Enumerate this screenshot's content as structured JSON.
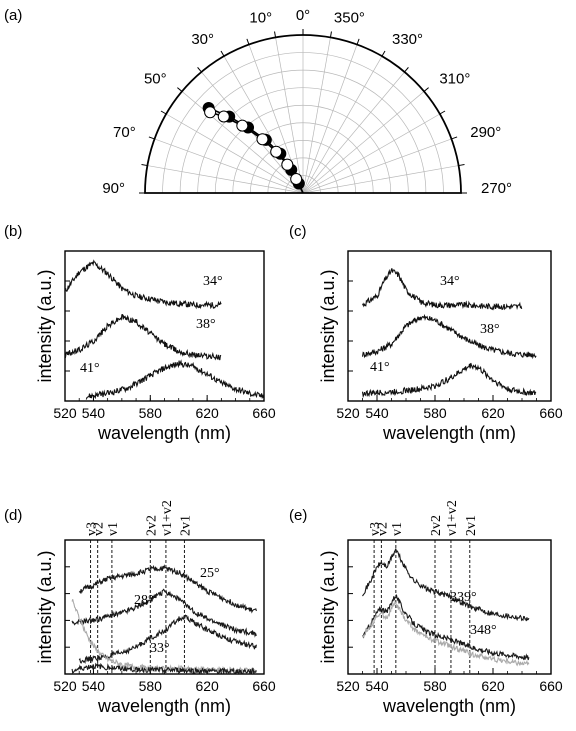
{
  "chart_data": [
    {
      "id": "a",
      "panel_label": "(a)",
      "type": "scatter",
      "coordinate_system": "polar-semicircle",
      "angle_labels": [
        "0°",
        "10°",
        "30°",
        "50°",
        "70°",
        "90°",
        "350°",
        "330°",
        "310°",
        "290°",
        "270°"
      ],
      "series": [
        {
          "marker": "filled-circle",
          "angle_deg": [
            48,
            44,
            40,
            35,
            30,
            27,
            24
          ],
          "radius": [
            0.98,
            0.82,
            0.66,
            0.5,
            0.35,
            0.2,
            0.08
          ]
        },
        {
          "marker": "open-circle",
          "angle_deg": [
            49,
            46,
            42,
            37,
            33,
            29,
            26
          ],
          "radius": [
            0.95,
            0.85,
            0.7,
            0.52,
            0.38,
            0.25,
            0.12
          ]
        }
      ]
    },
    {
      "id": "b",
      "panel_label": "(b)",
      "type": "line",
      "xlabel": "wavelength (nm)",
      "ylabel": "intensity (a.u.)",
      "xlim": [
        520,
        660
      ],
      "xticks": [
        520,
        540,
        580,
        620,
        660
      ],
      "yticks": 4,
      "series": [
        {
          "annotation": "34°",
          "x": [
            520,
            530,
            540,
            550,
            560,
            570,
            580,
            590,
            600,
            610,
            620,
            630
          ],
          "y": [
            0.73,
            0.86,
            0.92,
            0.85,
            0.75,
            0.7,
            0.68,
            0.66,
            0.65,
            0.64,
            0.64,
            0.64
          ]
        },
        {
          "annotation": "38°",
          "x": [
            520,
            530,
            540,
            550,
            560,
            570,
            580,
            590,
            600,
            610,
            620,
            630
          ],
          "y": [
            0.31,
            0.34,
            0.4,
            0.5,
            0.56,
            0.53,
            0.45,
            0.38,
            0.33,
            0.31,
            0.3,
            0.29
          ]
        },
        {
          "annotation": "41°",
          "x": [
            535,
            550,
            565,
            580,
            590,
            600,
            610,
            620,
            630,
            640,
            650,
            660
          ],
          "y": [
            0.03,
            0.05,
            0.09,
            0.17,
            0.22,
            0.25,
            0.23,
            0.18,
            0.12,
            0.08,
            0.05,
            0.03
          ]
        }
      ]
    },
    {
      "id": "c",
      "panel_label": "(c)",
      "type": "line",
      "xlabel": "wavelength (nm)",
      "ylabel": "intensity (a.u.)",
      "xlim": [
        520,
        660
      ],
      "xticks": [
        520,
        540,
        580,
        620,
        660
      ],
      "yticks": 4,
      "series": [
        {
          "annotation": "34°",
          "x": [
            530,
            540,
            545,
            550,
            555,
            560,
            570,
            580,
            600,
            620,
            640
          ],
          "y": [
            0.64,
            0.7,
            0.8,
            0.87,
            0.84,
            0.74,
            0.66,
            0.64,
            0.64,
            0.63,
            0.63
          ]
        },
        {
          "annotation": "38°",
          "x": [
            530,
            540,
            550,
            560,
            570,
            580,
            590,
            600,
            610,
            620,
            630,
            640,
            650
          ],
          "y": [
            0.31,
            0.33,
            0.38,
            0.5,
            0.56,
            0.54,
            0.48,
            0.42,
            0.37,
            0.34,
            0.32,
            0.31,
            0.31
          ]
        },
        {
          "annotation": "41°",
          "x": [
            530,
            550,
            570,
            580,
            590,
            600,
            605,
            610,
            620,
            630,
            640,
            650
          ],
          "y": [
            0.05,
            0.06,
            0.08,
            0.1,
            0.15,
            0.21,
            0.24,
            0.22,
            0.14,
            0.08,
            0.06,
            0.05
          ]
        }
      ]
    },
    {
      "id": "d",
      "panel_label": "(d)",
      "type": "line",
      "xlabel": "wavelength (nm)",
      "ylabel": "intensity (a.u.)",
      "xlim": [
        520,
        660
      ],
      "xticks": [
        520,
        540,
        580,
        620,
        660
      ],
      "yticks": 4,
      "vlines": [
        {
          "label": "v3",
          "x": 538
        },
        {
          "label": "v2",
          "x": 543
        },
        {
          "label": "v1",
          "x": 553
        },
        {
          "label": "2v2",
          "x": 580
        },
        {
          "label": "v1+v2",
          "x": 591
        },
        {
          "label": "2v1",
          "x": 604
        }
      ],
      "series": [
        {
          "annotation": "25°",
          "color": "#1a1a1a",
          "x": [
            530,
            540,
            550,
            560,
            570,
            580,
            590,
            600,
            610,
            620,
            640,
            650,
            655
          ],
          "y": [
            0.62,
            0.66,
            0.71,
            0.73,
            0.75,
            0.78,
            0.79,
            0.76,
            0.69,
            0.62,
            0.52,
            0.48,
            0.47
          ]
        },
        {
          "annotation": "28°",
          "color": "#1a1a1a",
          "x": [
            525,
            540,
            550,
            560,
            570,
            580,
            590,
            600,
            610,
            620,
            640,
            655
          ],
          "y": [
            0.38,
            0.4,
            0.43,
            0.46,
            0.5,
            0.55,
            0.62,
            0.56,
            0.47,
            0.41,
            0.33,
            0.3
          ]
        },
        {
          "annotation": "33°",
          "color": "#1a1a1a",
          "x": [
            530,
            550,
            560,
            570,
            580,
            590,
            600,
            605,
            610,
            620,
            640,
            655
          ],
          "y": [
            0.1,
            0.13,
            0.16,
            0.2,
            0.27,
            0.32,
            0.41,
            0.42,
            0.39,
            0.33,
            0.24,
            0.2
          ]
        },
        {
          "color": "#aaaaaa",
          "x": [
            525,
            530,
            535,
            540,
            545,
            550,
            560,
            570,
            580,
            600,
            620,
            655
          ],
          "y": [
            0.55,
            0.42,
            0.3,
            0.21,
            0.15,
            0.11,
            0.07,
            0.05,
            0.04,
            0.04,
            0.03,
            0.03
          ]
        },
        {
          "color": "#1a1a1a",
          "x": [
            525,
            530,
            540,
            550,
            560,
            580,
            600,
            620,
            655
          ],
          "y": [
            0.02,
            0.04,
            0.06,
            0.05,
            0.04,
            0.03,
            0.03,
            0.02,
            0.02
          ]
        }
      ]
    },
    {
      "id": "e",
      "panel_label": "(e)",
      "type": "line",
      "xlabel": "wavelength (nm)",
      "ylabel": "intensity (a.u.)",
      "xlim": [
        520,
        660
      ],
      "xticks": [
        520,
        540,
        580,
        620,
        660
      ],
      "yticks": 4,
      "vlines": [
        {
          "label": "v3",
          "x": 538
        },
        {
          "label": "v2",
          "x": 543
        },
        {
          "label": "v1",
          "x": 553
        },
        {
          "label": "2v2",
          "x": 580
        },
        {
          "label": "v1+v2",
          "x": 591
        },
        {
          "label": "2v1",
          "x": 604
        }
      ],
      "series": [
        {
          "annotation": "339°",
          "color": "#1a1a1a",
          "x": [
            530,
            535,
            540,
            543,
            547,
            550,
            553,
            558,
            565,
            575,
            590,
            605,
            620,
            640,
            645
          ],
          "y": [
            0.6,
            0.68,
            0.8,
            0.83,
            0.8,
            0.87,
            0.93,
            0.82,
            0.7,
            0.63,
            0.58,
            0.5,
            0.45,
            0.42,
            0.41
          ]
        },
        {
          "annotation": "348°",
          "color": "#1a1a1a",
          "x": [
            530,
            535,
            540,
            543,
            547,
            550,
            553,
            558,
            565,
            575,
            590,
            605,
            620,
            640,
            645
          ],
          "y": [
            0.28,
            0.36,
            0.46,
            0.49,
            0.46,
            0.54,
            0.59,
            0.48,
            0.38,
            0.31,
            0.26,
            0.2,
            0.16,
            0.13,
            0.12
          ]
        },
        {
          "color": "#aaaaaa",
          "x": [
            530,
            535,
            540,
            543,
            547,
            550,
            553,
            558,
            565,
            575,
            590,
            605,
            620,
            640,
            645
          ],
          "y": [
            0.28,
            0.35,
            0.43,
            0.45,
            0.42,
            0.49,
            0.53,
            0.43,
            0.34,
            0.27,
            0.21,
            0.15,
            0.11,
            0.08,
            0.07
          ]
        }
      ]
    }
  ]
}
